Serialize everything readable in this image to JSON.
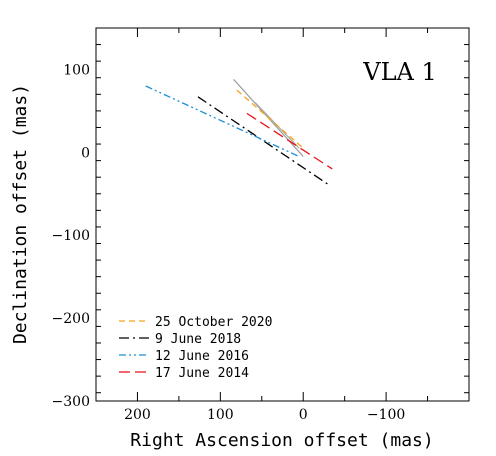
{
  "chart_data": {
    "type": "line",
    "title": "VLA 1",
    "xlabel": "Right Ascension offset (mas)",
    "ylabel": "Declination offset (mas)",
    "xlim": [
      250,
      -200
    ],
    "ylim": [
      -300,
      150
    ],
    "x_ticks": [
      200,
      100,
      0,
      -100
    ],
    "x_tick_labels": [
      "200",
      "100",
      "0",
      "−100"
    ],
    "y_ticks": [
      100,
      0,
      -100,
      -200,
      -300
    ],
    "y_tick_labels": [
      "100",
      "0",
      "−100",
      "−200",
      "−300"
    ],
    "legend_position": "bottom-left",
    "series": [
      {
        "name": "25 October 2020",
        "color": "#f5a31a",
        "dash": "dashed",
        "x": [
          80,
          0
        ],
        "y": [
          75,
          5
        ]
      },
      {
        "name": "9 June 2018",
        "color": "#000000",
        "dash": "long-dash-dot",
        "x": [
          127,
          -32
        ],
        "y": [
          67,
          -40
        ]
      },
      {
        "name": "12 June 2016",
        "color": "#1a8fd6",
        "dash": "dash-dot-dot",
        "x": [
          190,
          5
        ],
        "y": [
          80,
          -5
        ]
      },
      {
        "name": "17 June 2014",
        "color": "#e8141c",
        "dash": "long-dash",
        "x": [
          68,
          -35
        ],
        "y": [
          47,
          -20
        ]
      }
    ],
    "extra_lines": [
      {
        "color": "#999999",
        "dash": "solid",
        "x": [
          84,
          0
        ],
        "y": [
          88,
          -5
        ]
      },
      {
        "color": "#aaaaaa",
        "dash": "solid",
        "x": [
          58,
          5
        ],
        "y": [
          60,
          5
        ]
      }
    ]
  }
}
